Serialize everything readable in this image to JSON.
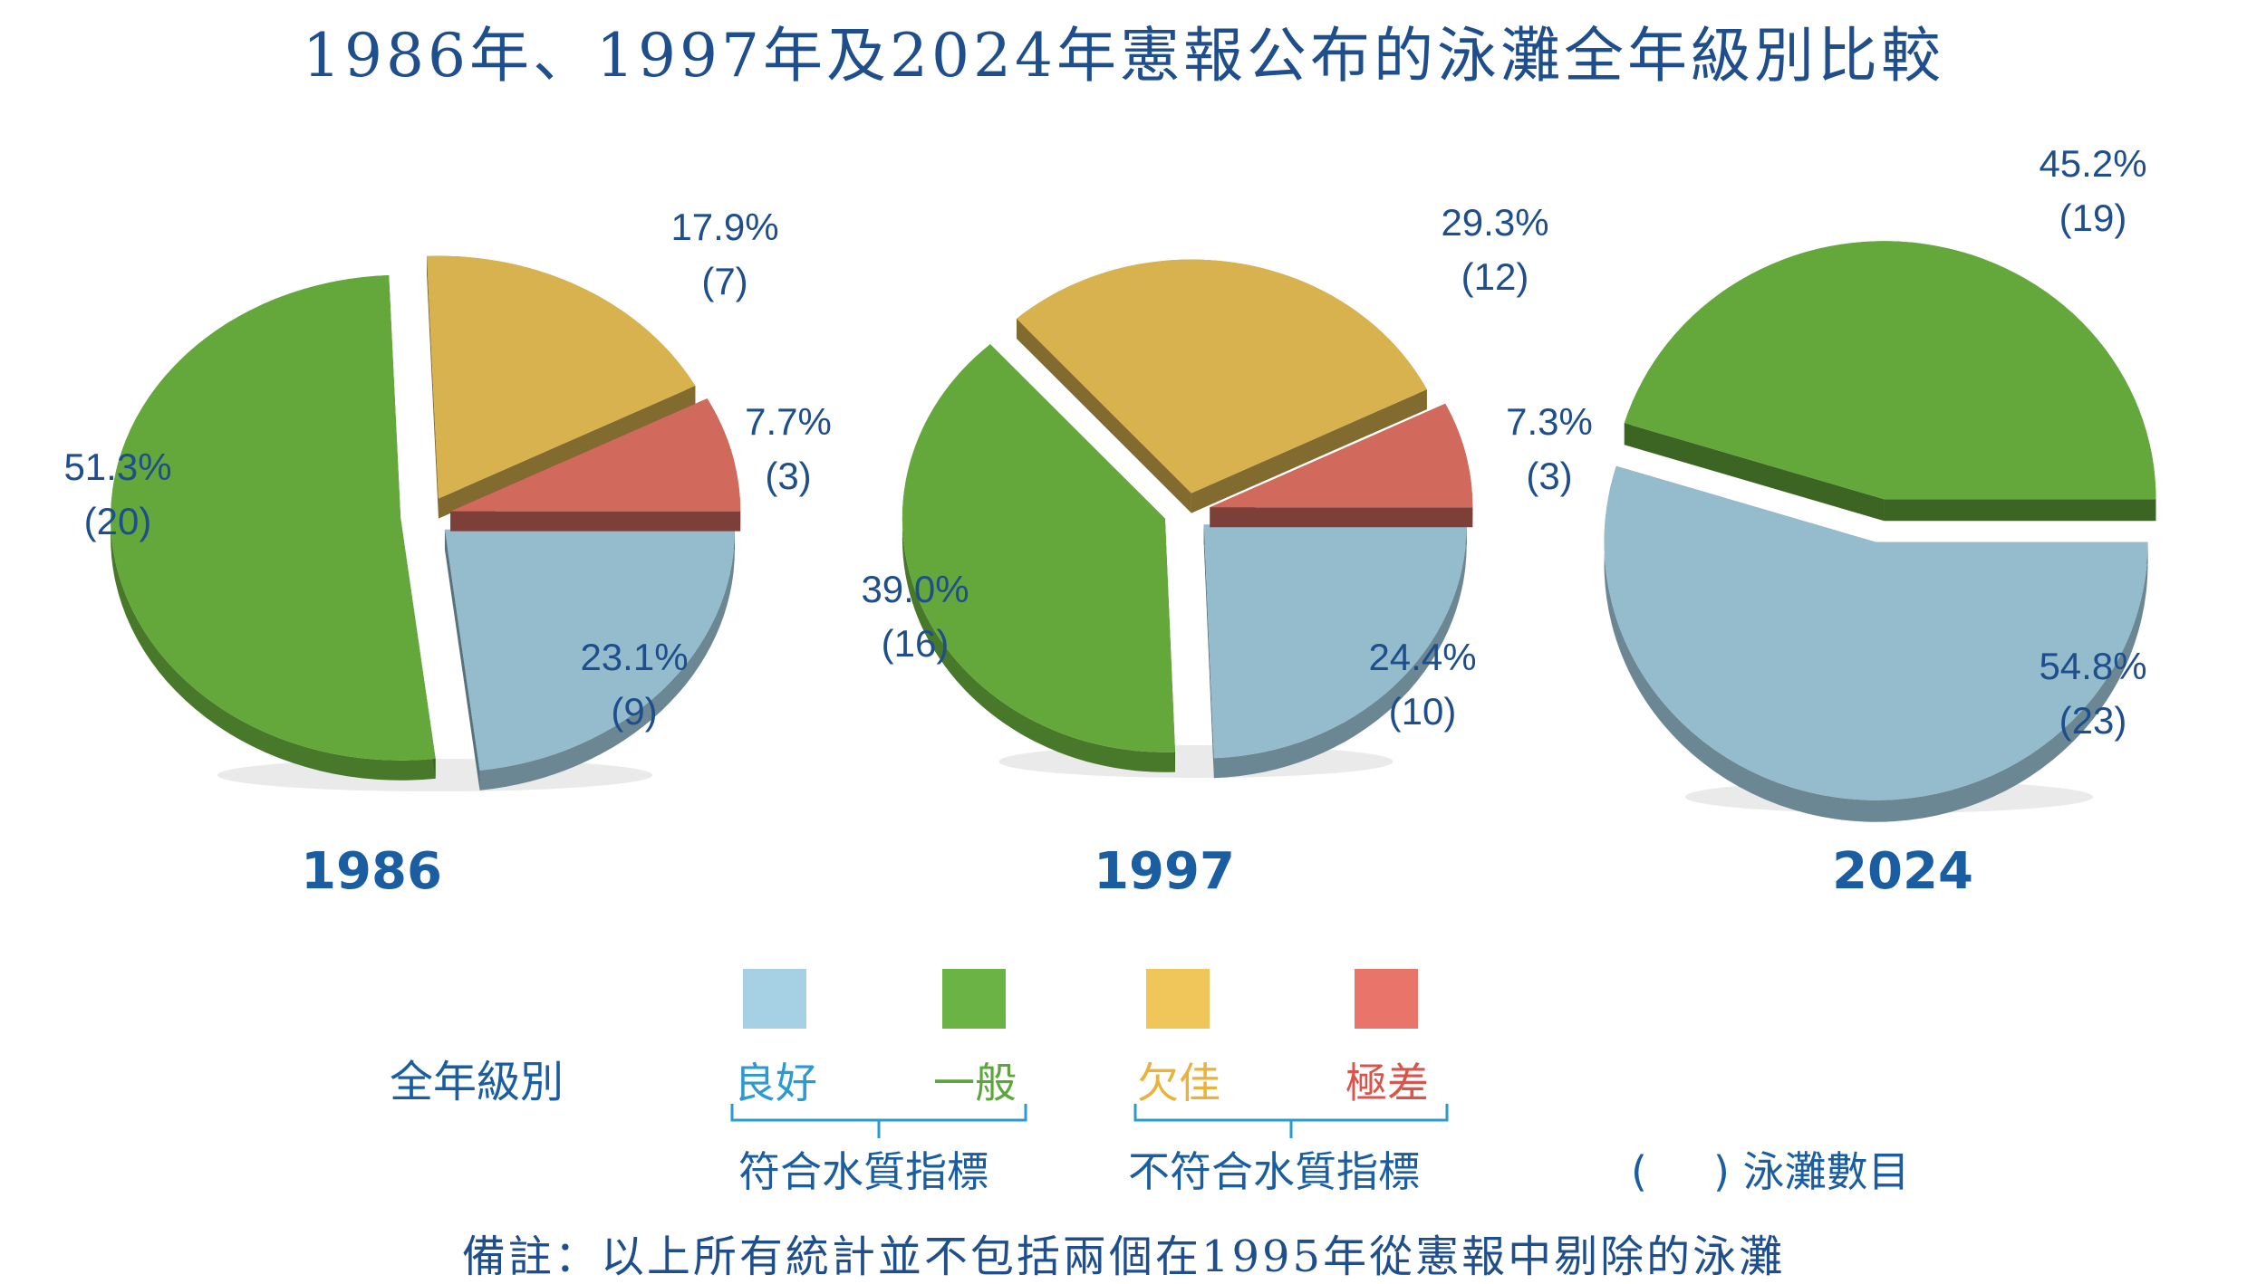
{
  "title": "1986年、1997年及2024年憲報公布的泳灘全年級別比較",
  "chart_data": [
    {
      "type": "pie",
      "year": "1986",
      "slices": [
        {
          "category": "良好",
          "percent_label": "23.1%",
          "count_label": "(9)",
          "value": 9
        },
        {
          "category": "一般",
          "percent_label": "51.3%",
          "count_label": "(20)",
          "value": 20
        },
        {
          "category": "欠佳",
          "percent_label": "17.9%",
          "count_label": "(7)",
          "value": 7
        },
        {
          "category": "極差",
          "percent_label": "7.7%",
          "count_label": "(3)",
          "value": 3
        }
      ]
    },
    {
      "type": "pie",
      "year": "1997",
      "slices": [
        {
          "category": "良好",
          "percent_label": "24.4%",
          "count_label": "(10)",
          "value": 10
        },
        {
          "category": "一般",
          "percent_label": "39.0%",
          "count_label": "(16)",
          "value": 16
        },
        {
          "category": "欠佳",
          "percent_label": "29.3%",
          "count_label": "(12)",
          "value": 12
        },
        {
          "category": "極差",
          "percent_label": "7.3%",
          "count_label": "(3)",
          "value": 3
        }
      ]
    },
    {
      "type": "pie",
      "year": "2024",
      "slices": [
        {
          "category": "良好",
          "percent_label": "54.8%",
          "count_label": "(23)",
          "value": 23
        },
        {
          "category": "一般",
          "percent_label": "45.2%",
          "count_label": "(19)",
          "value": 19
        },
        {
          "category": "欠佳",
          "percent_label": "",
          "count_label": "",
          "value": 0
        },
        {
          "category": "極差",
          "percent_label": "",
          "count_label": "",
          "value": 0
        }
      ]
    }
  ],
  "colors": {
    "良好": "#94bccd",
    "一般": "#64a83c",
    "欠佳": "#d8b24e",
    "極差": "#d16a5d",
    "text": "#1f4e8c"
  },
  "legend": {
    "title": "全年級別",
    "items": [
      {
        "label": "良好",
        "color": "#a6d0e4",
        "text_color": "#2a9ad1"
      },
      {
        "label": "一般",
        "color": "#6ab344",
        "text_color": "#5aa63a"
      },
      {
        "label": "欠佳",
        "color": "#f0c55a",
        "text_color": "#e8b23c"
      },
      {
        "label": "極差",
        "color": "#e8746a",
        "text_color": "#d9544a"
      }
    ],
    "group_compliant": "符合水質指標",
    "group_noncompliant": "不符合水質指標",
    "count_note": "(     ) 泳灘數目"
  },
  "note": "備註：以上所有統計並不包括兩個在1995年從憲報中剔除的泳灘"
}
